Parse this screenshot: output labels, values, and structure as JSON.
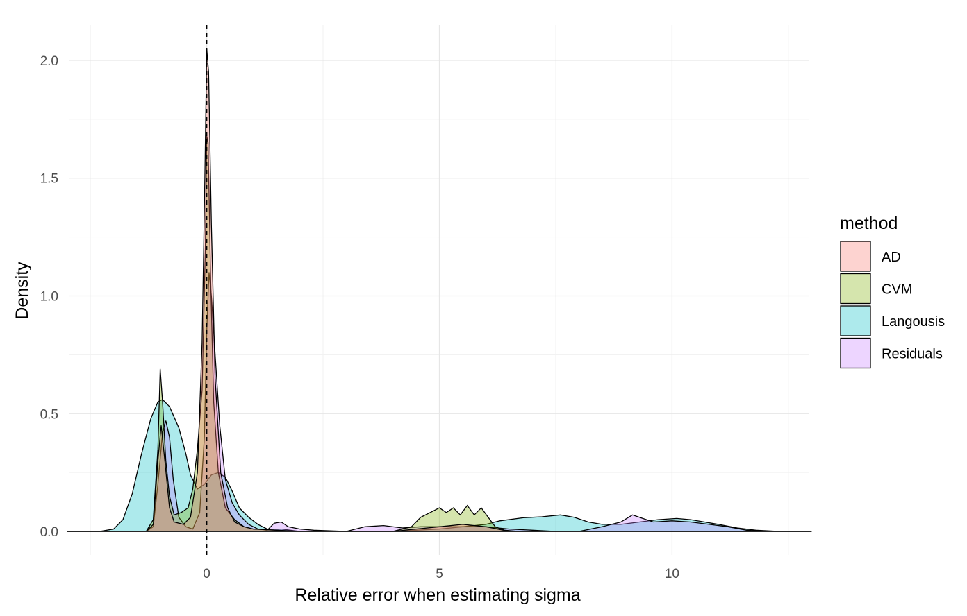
{
  "chart_data": {
    "type": "area",
    "title": "",
    "xlabel": "Relative error when estimating sigma",
    "ylabel": "Density",
    "xlim": [
      -2.95,
      12.95
    ],
    "ylim": [
      -0.1,
      2.15
    ],
    "x_ticks": [
      0,
      5,
      10
    ],
    "x_tick_labels": [
      "0",
      "5",
      "10"
    ],
    "y_ticks": [
      0.0,
      0.5,
      1.0,
      1.5,
      2.0
    ],
    "y_tick_labels": [
      "0.0",
      "0.5",
      "1.0",
      "1.5",
      "2.0"
    ],
    "x_minor": [
      -2.5,
      2.5,
      7.5,
      12.5
    ],
    "y_minor": [
      0.25,
      0.75,
      1.25,
      1.75
    ],
    "grid": true,
    "reference_line": {
      "x": 0,
      "style": "dashed",
      "color": "#000000"
    },
    "legend": {
      "title": "method",
      "position": "right"
    },
    "series": [
      {
        "name": "Langousis",
        "color": "#00BFC4",
        "points": [
          [
            -3.0,
            0
          ],
          [
            -2.3,
            0.0
          ],
          [
            -2.0,
            0.01
          ],
          [
            -1.8,
            0.05
          ],
          [
            -1.6,
            0.16
          ],
          [
            -1.4,
            0.33
          ],
          [
            -1.2,
            0.48
          ],
          [
            -1.05,
            0.55
          ],
          [
            -0.95,
            0.56
          ],
          [
            -0.8,
            0.53
          ],
          [
            -0.6,
            0.44
          ],
          [
            -0.45,
            0.33
          ],
          [
            -0.35,
            0.24
          ],
          [
            -0.2,
            0.18
          ],
          [
            -0.05,
            0.2
          ],
          [
            0.1,
            0.24
          ],
          [
            0.25,
            0.25
          ],
          [
            0.4,
            0.23
          ],
          [
            0.55,
            0.17
          ],
          [
            0.7,
            0.1
          ],
          [
            0.9,
            0.06
          ],
          [
            1.1,
            0.03
          ],
          [
            1.3,
            0.01
          ],
          [
            1.6,
            0.01
          ],
          [
            2.0,
            0.0
          ],
          [
            3.0,
            0.0
          ],
          [
            4.0,
            0.0
          ],
          [
            4.5,
            0.005
          ],
          [
            5.0,
            0.01
          ],
          [
            5.5,
            0.02
          ],
          [
            6.0,
            0.03
          ],
          [
            6.3,
            0.045
          ],
          [
            6.8,
            0.058
          ],
          [
            7.2,
            0.062
          ],
          [
            7.6,
            0.07
          ],
          [
            7.9,
            0.06
          ],
          [
            8.2,
            0.04
          ],
          [
            8.5,
            0.03
          ],
          [
            8.9,
            0.03
          ],
          [
            9.3,
            0.04
          ],
          [
            9.7,
            0.05
          ],
          [
            10.1,
            0.055
          ],
          [
            10.4,
            0.05
          ],
          [
            10.7,
            0.04
          ],
          [
            11.0,
            0.03
          ],
          [
            11.4,
            0.015
          ],
          [
            11.8,
            0.005
          ],
          [
            12.3,
            0.0
          ],
          [
            13.0,
            0
          ]
        ]
      },
      {
        "name": "Residuals",
        "color": "#C77CFF",
        "points": [
          [
            -3.0,
            0
          ],
          [
            -1.3,
            0.0
          ],
          [
            -1.15,
            0.02
          ],
          [
            -1.05,
            0.2
          ],
          [
            -0.95,
            0.42
          ],
          [
            -0.88,
            0.47
          ],
          [
            -0.8,
            0.4
          ],
          [
            -0.72,
            0.22
          ],
          [
            -0.6,
            0.06
          ],
          [
            -0.45,
            0.02
          ],
          [
            -0.3,
            0.01
          ],
          [
            -0.15,
            0.08
          ],
          [
            -0.05,
            0.4
          ],
          [
            0.0,
            0.85
          ],
          [
            0.05,
            1.1
          ],
          [
            0.1,
            1.0
          ],
          [
            0.18,
            0.75
          ],
          [
            0.28,
            0.45
          ],
          [
            0.4,
            0.22
          ],
          [
            0.55,
            0.12
          ],
          [
            0.7,
            0.07
          ],
          [
            0.9,
            0.03
          ],
          [
            1.1,
            0.01
          ],
          [
            1.3,
            0.005
          ],
          [
            1.45,
            0.035
          ],
          [
            1.6,
            0.04
          ],
          [
            1.75,
            0.02
          ],
          [
            2.0,
            0.01
          ],
          [
            2.3,
            0.005
          ],
          [
            3.0,
            0.0
          ],
          [
            3.4,
            0.02
          ],
          [
            3.8,
            0.025
          ],
          [
            4.2,
            0.015
          ],
          [
            4.6,
            0.02
          ],
          [
            5.0,
            0.02
          ],
          [
            5.5,
            0.02
          ],
          [
            6.0,
            0.02
          ],
          [
            6.5,
            0.01
          ],
          [
            7.0,
            0.005
          ],
          [
            7.5,
            0.0
          ],
          [
            8.0,
            0.0
          ],
          [
            8.5,
            0.02
          ],
          [
            8.9,
            0.04
          ],
          [
            9.15,
            0.07
          ],
          [
            9.3,
            0.06
          ],
          [
            9.6,
            0.04
          ],
          [
            10.0,
            0.045
          ],
          [
            10.4,
            0.04
          ],
          [
            10.8,
            0.03
          ],
          [
            11.2,
            0.02
          ],
          [
            11.6,
            0.005
          ],
          [
            12.0,
            0.0
          ],
          [
            13.0,
            0
          ]
        ]
      },
      {
        "name": "CVM",
        "color": "#7CAE00",
        "points": [
          [
            -3.0,
            0
          ],
          [
            -1.3,
            0.0
          ],
          [
            -1.15,
            0.05
          ],
          [
            -1.05,
            0.35
          ],
          [
            -1.0,
            0.69
          ],
          [
            -0.95,
            0.55
          ],
          [
            -0.88,
            0.3
          ],
          [
            -0.8,
            0.15
          ],
          [
            -0.7,
            0.07
          ],
          [
            -0.55,
            0.08
          ],
          [
            -0.4,
            0.1
          ],
          [
            -0.3,
            0.18
          ],
          [
            -0.2,
            0.35
          ],
          [
            -0.1,
            0.6
          ],
          [
            -0.03,
            1.2
          ],
          [
            0.0,
            1.68
          ],
          [
            0.03,
            1.65
          ],
          [
            0.08,
            1.1
          ],
          [
            0.15,
            0.55
          ],
          [
            0.25,
            0.25
          ],
          [
            0.4,
            0.1
          ],
          [
            0.6,
            0.05
          ],
          [
            0.8,
            0.02
          ],
          [
            1.0,
            0.01
          ],
          [
            1.5,
            0.005
          ],
          [
            2.0,
            0.0
          ],
          [
            4.0,
            0.0
          ],
          [
            4.4,
            0.02
          ],
          [
            4.6,
            0.06
          ],
          [
            4.8,
            0.08
          ],
          [
            5.0,
            0.1
          ],
          [
            5.15,
            0.08
          ],
          [
            5.3,
            0.1
          ],
          [
            5.45,
            0.07
          ],
          [
            5.6,
            0.11
          ],
          [
            5.75,
            0.07
          ],
          [
            5.9,
            0.1
          ],
          [
            6.05,
            0.06
          ],
          [
            6.2,
            0.02
          ],
          [
            6.4,
            0.005
          ],
          [
            6.7,
            0.0
          ],
          [
            13.0,
            0
          ]
        ]
      },
      {
        "name": "AD",
        "color": "#F8766D",
        "points": [
          [
            -3.0,
            0
          ],
          [
            -1.3,
            0.0
          ],
          [
            -1.15,
            0.03
          ],
          [
            -1.05,
            0.3
          ],
          [
            -0.98,
            0.45
          ],
          [
            -0.9,
            0.3
          ],
          [
            -0.8,
            0.1
          ],
          [
            -0.7,
            0.04
          ],
          [
            -0.5,
            0.03
          ],
          [
            -0.35,
            0.06
          ],
          [
            -0.2,
            0.25
          ],
          [
            -0.1,
            0.8
          ],
          [
            -0.04,
            1.5
          ],
          [
            0.0,
            2.05
          ],
          [
            0.04,
            1.95
          ],
          [
            0.1,
            1.3
          ],
          [
            0.18,
            0.65
          ],
          [
            0.3,
            0.25
          ],
          [
            0.45,
            0.1
          ],
          [
            0.6,
            0.04
          ],
          [
            0.8,
            0.02
          ],
          [
            1.0,
            0.01
          ],
          [
            1.5,
            0.005
          ],
          [
            2.0,
            0.0
          ],
          [
            4.0,
            0.0
          ],
          [
            4.5,
            0.01
          ],
          [
            5.0,
            0.02
          ],
          [
            5.5,
            0.03
          ],
          [
            6.0,
            0.02
          ],
          [
            6.5,
            0.0
          ],
          [
            13.0,
            0
          ]
        ]
      }
    ]
  }
}
